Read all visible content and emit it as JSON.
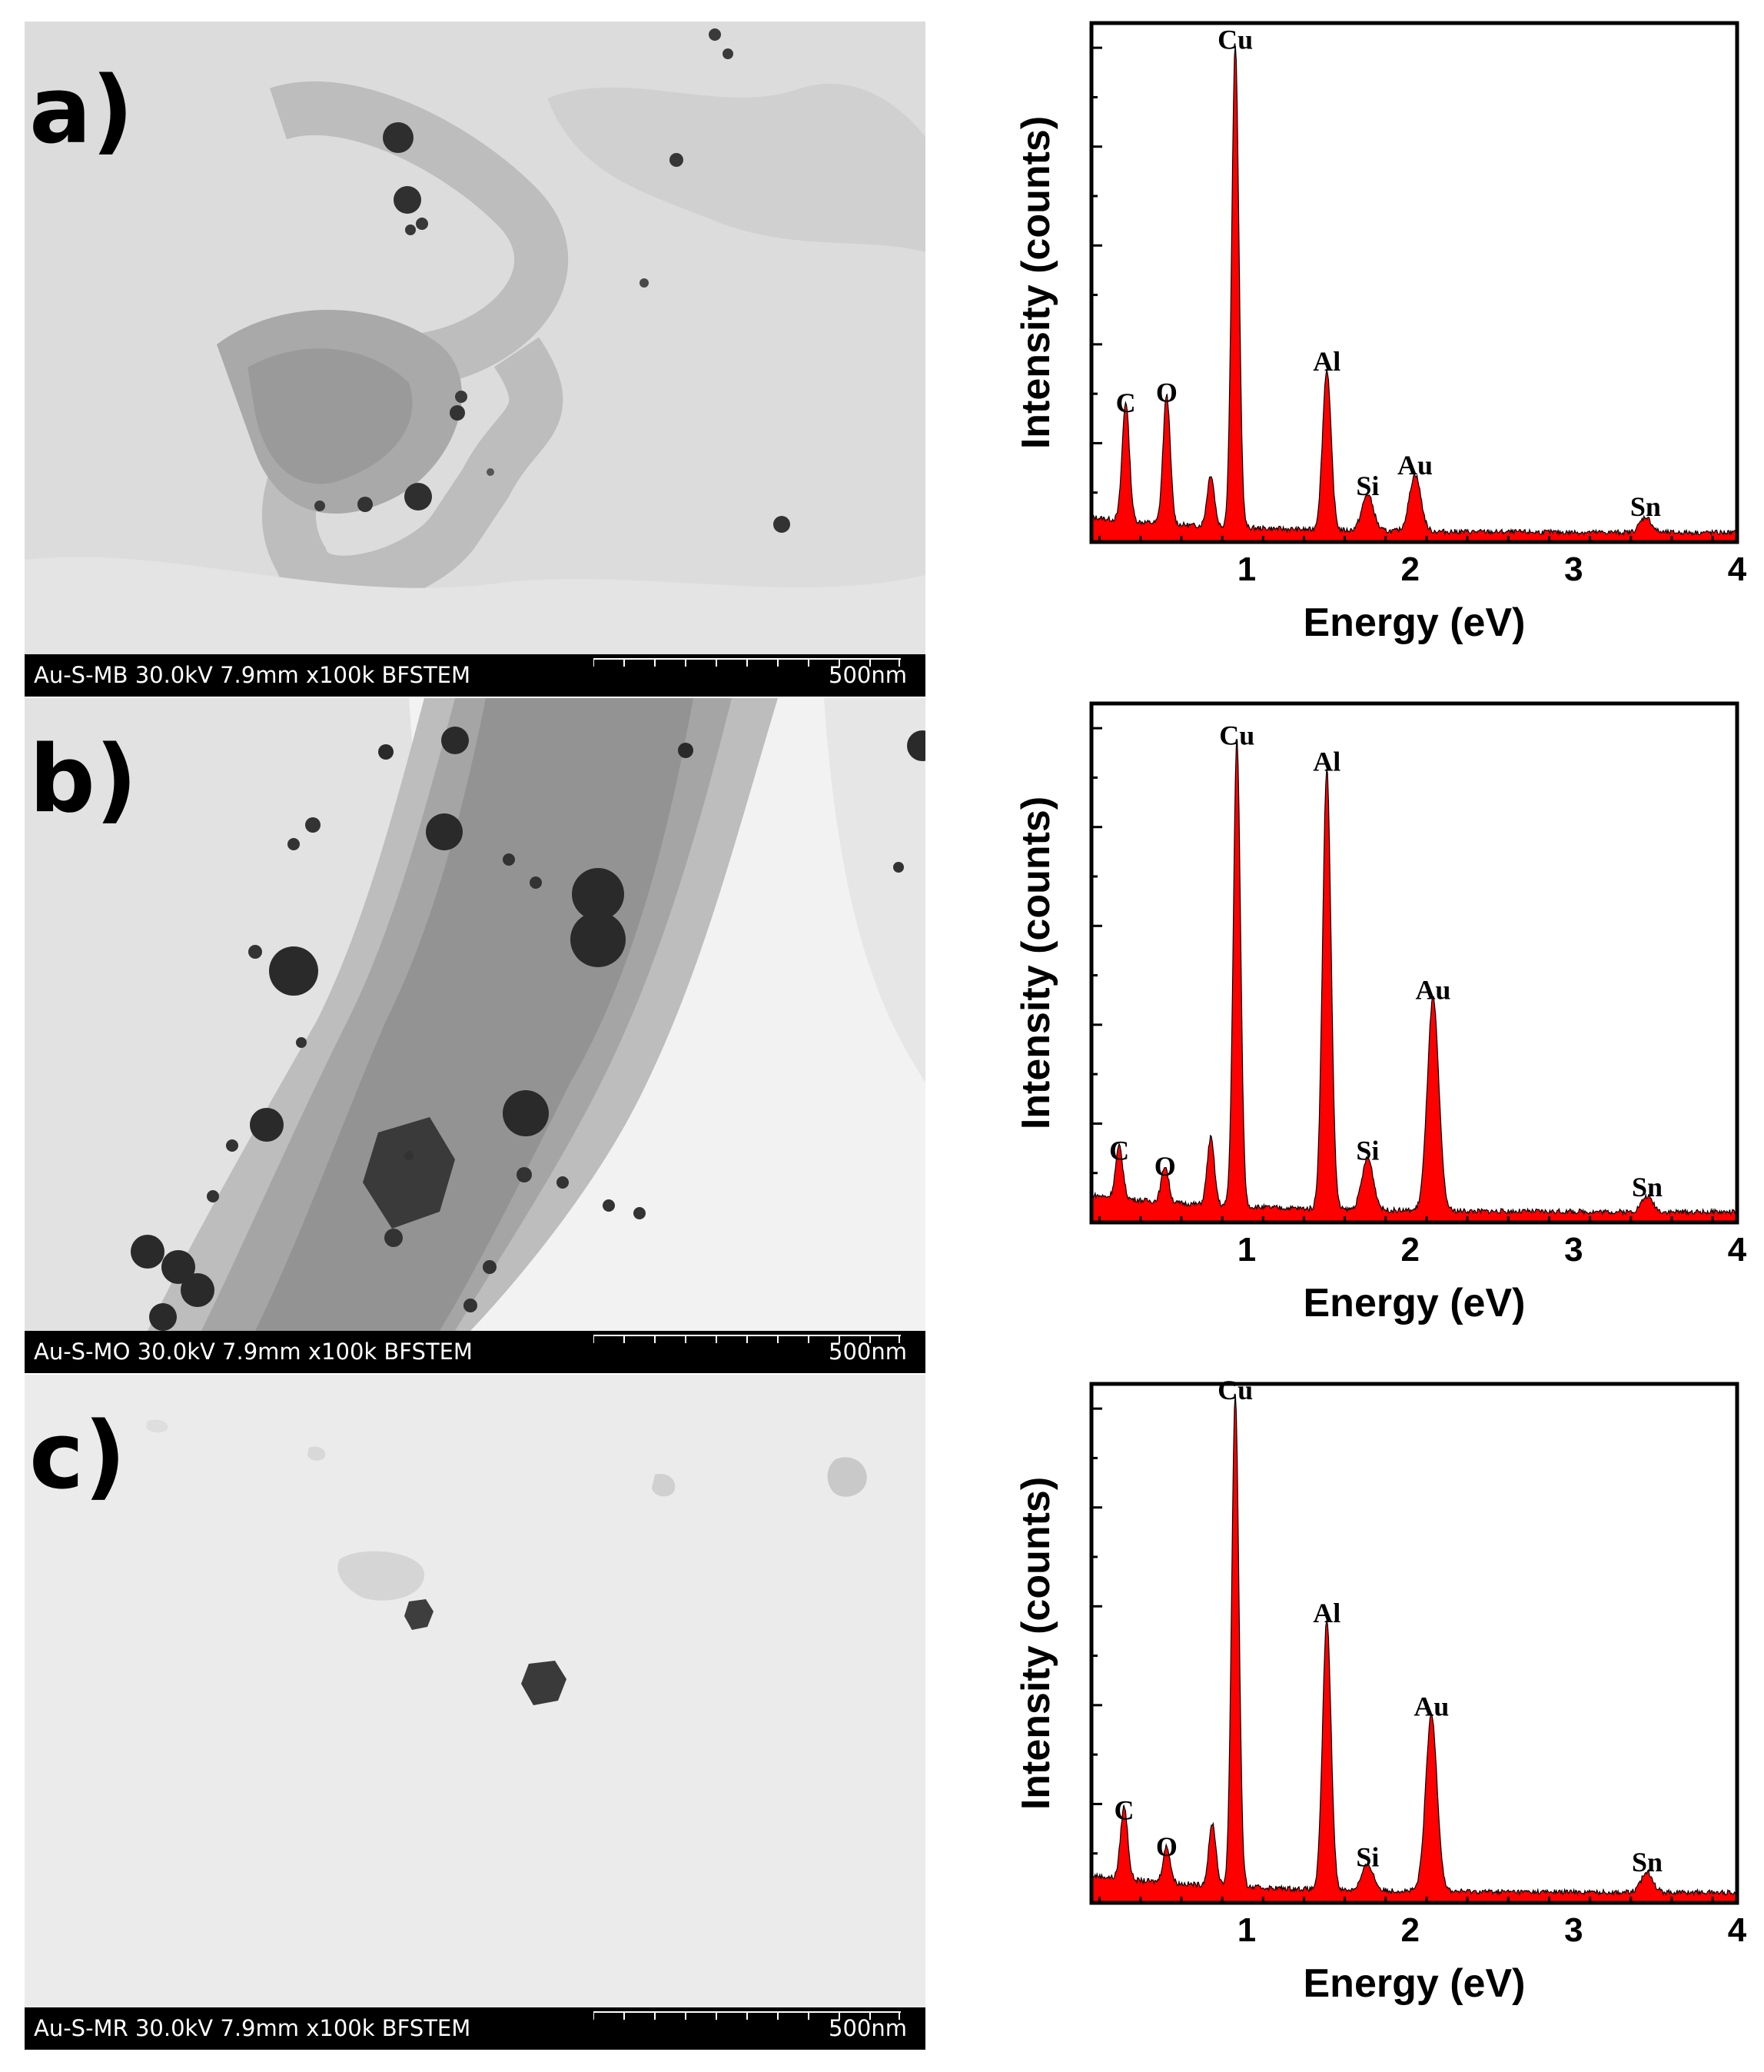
{
  "panels": [
    {
      "label": "a)",
      "stem": {
        "caption": "Au-S-MB 30.0kV 7.9mm x100k BFSTEM",
        "scale": "500nm"
      },
      "chart_data": {
        "type": "area",
        "xlabel": "Energy (eV)",
        "ylabel": "Intensity (counts)",
        "xlim": [
          0.05,
          4.0
        ],
        "ylim": [
          0,
          1.0
        ],
        "xticks": [
          1,
          2,
          3,
          4
        ],
        "color": "#ff0000",
        "peaks": [
          {
            "element": "C",
            "energy": 0.26,
            "height": 0.23
          },
          {
            "element": "O",
            "energy": 0.51,
            "height": 0.25
          },
          {
            "element": "",
            "energy": 0.78,
            "height": 0.1
          },
          {
            "element": "Cu",
            "energy": 0.93,
            "height": 0.93
          },
          {
            "element": "Al",
            "energy": 1.49,
            "height": 0.31
          },
          {
            "element": "Si",
            "energy": 1.74,
            "height": 0.07
          },
          {
            "element": "Au",
            "energy": 2.03,
            "height": 0.11
          },
          {
            "element": "Sn",
            "energy": 3.44,
            "height": 0.03
          }
        ],
        "baseline": 0.018
      }
    },
    {
      "label": "b)",
      "stem": {
        "caption": "Au-S-MO 30.0kV 7.9mm x100k BFSTEM",
        "scale": "500nm"
      },
      "chart_data": {
        "type": "area",
        "xlabel": "Energy (eV)",
        "ylabel": "Intensity (counts)",
        "xlim": [
          0.05,
          4.0
        ],
        "ylim": [
          0,
          1.0
        ],
        "xticks": [
          1,
          2,
          3,
          4
        ],
        "color": "#ff0000",
        "peaks": [
          {
            "element": "C",
            "energy": 0.22,
            "height": 0.1
          },
          {
            "element": "O",
            "energy": 0.5,
            "height": 0.07
          },
          {
            "element": "",
            "energy": 0.78,
            "height": 0.13
          },
          {
            "element": "Cu",
            "energy": 0.94,
            "height": 0.9
          },
          {
            "element": "Al",
            "energy": 1.49,
            "height": 0.85
          },
          {
            "element": "Si",
            "energy": 1.74,
            "height": 0.1
          },
          {
            "element": "Au",
            "energy": 2.14,
            "height": 0.41
          },
          {
            "element": "Sn",
            "energy": 3.45,
            "height": 0.03
          }
        ],
        "baseline": 0.02
      }
    },
    {
      "label": "c)",
      "stem": {
        "caption": "Au-S-MR 30.0kV 7.9mm x100k BFSTEM",
        "scale": "500nm"
      },
      "chart_data": {
        "type": "area",
        "xlabel": "Energy (eV)",
        "ylabel": "Intensity (counts)",
        "xlim": [
          0.05,
          4.0
        ],
        "ylim": [
          0,
          1.0
        ],
        "xticks": [
          1,
          2,
          3,
          4
        ],
        "color": "#ff0000",
        "peaks": [
          {
            "element": "C",
            "energy": 0.25,
            "height": 0.14
          },
          {
            "element": "O",
            "energy": 0.51,
            "height": 0.07
          },
          {
            "element": "",
            "energy": 0.79,
            "height": 0.12
          },
          {
            "element": "Cu",
            "energy": 0.93,
            "height": 0.95
          },
          {
            "element": "Al",
            "energy": 1.49,
            "height": 0.52
          },
          {
            "element": "Si",
            "energy": 1.74,
            "height": 0.05
          },
          {
            "element": "Au",
            "energy": 2.13,
            "height": 0.34
          },
          {
            "element": "Sn",
            "energy": 3.45,
            "height": 0.04
          }
        ],
        "baseline": 0.02
      }
    }
  ]
}
